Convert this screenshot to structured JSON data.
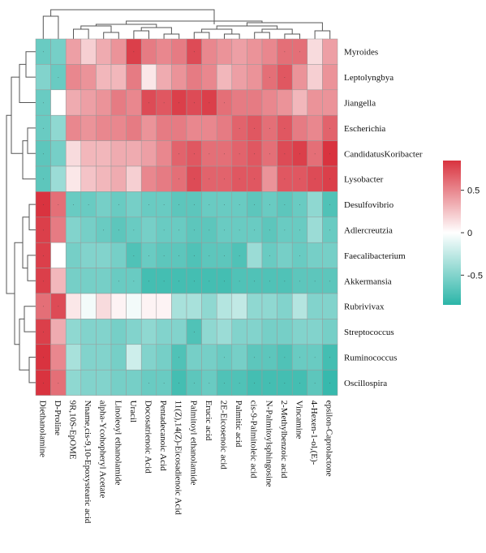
{
  "chart_data": {
    "type": "heatmap",
    "rows": [
      "Myroides",
      "Leptolyngbya",
      "Jiangella",
      "Escherichia",
      "CandidatusKoribacter",
      "Lysobacter",
      "Desulfovibrio",
      "Adlercreutzia",
      "Faecalibacterium",
      "Akkermansia",
      "Rubrivivax",
      "Streptococcus",
      "Ruminococcus",
      "Oscillospira"
    ],
    "columns": [
      "Diethanolamine",
      "D-Proline",
      "9R,10S-EpOME",
      "Nname,cis-9,10-Epoxystearic acid",
      "alpha-Ycohopheryl Acetate",
      "Linoleoyl ethanolamide",
      "Uracil",
      "Docosatrienoic Acid",
      "Pentadecanoic Acid",
      "11(Z),14(Z)-Eicosadienoic Acid",
      "Palmitoyl ethanolamide",
      "Erucic acid",
      "2E-Eicosenoic acid",
      "Palmitic acid",
      "cis-9-Palmitoleic acid",
      "N-Palmitoylsphingosine",
      "2-Methylbenzoic acid",
      "Vincamine",
      "4-Hexen-1-ol,(E)-",
      "epsilon-Caprolactone"
    ],
    "values": [
      [
        -0.6,
        -0.55,
        0.4,
        0.2,
        0.35,
        0.45,
        0.8,
        0.55,
        0.5,
        0.55,
        0.75,
        0.5,
        0.45,
        0.4,
        0.45,
        0.5,
        0.6,
        0.6,
        0.15,
        0.4
      ],
      [
        -0.5,
        -0.6,
        0.5,
        0.45,
        0.3,
        0.3,
        0.55,
        0.1,
        0.35,
        0.45,
        0.55,
        0.5,
        0.3,
        0.4,
        0.45,
        0.6,
        0.7,
        0.45,
        0.2,
        0.45
      ],
      [
        -0.6,
        0.0,
        0.35,
        0.4,
        0.45,
        0.55,
        0.5,
        0.75,
        0.7,
        0.8,
        0.75,
        0.8,
        0.6,
        0.55,
        0.55,
        0.5,
        0.45,
        0.3,
        0.45,
        0.45
      ],
      [
        -0.6,
        -0.45,
        0.5,
        0.45,
        0.5,
        0.5,
        0.55,
        0.45,
        0.55,
        0.55,
        0.5,
        0.5,
        0.55,
        0.65,
        0.7,
        0.6,
        0.7,
        0.55,
        0.5,
        0.65
      ],
      [
        -0.65,
        -0.55,
        0.15,
        0.3,
        0.3,
        0.35,
        0.35,
        0.4,
        0.5,
        0.65,
        0.7,
        0.6,
        0.6,
        0.65,
        0.7,
        0.6,
        0.75,
        0.8,
        0.6,
        0.85
      ],
      [
        -0.65,
        -0.4,
        0.1,
        0.25,
        0.3,
        0.35,
        0.2,
        0.5,
        0.55,
        0.6,
        0.75,
        0.65,
        0.65,
        0.7,
        0.7,
        0.45,
        0.7,
        0.7,
        0.75,
        0.8
      ],
      [
        0.85,
        0.6,
        -0.6,
        -0.6,
        -0.55,
        -0.6,
        -0.55,
        -0.6,
        -0.6,
        -0.65,
        -0.65,
        -0.6,
        -0.6,
        -0.6,
        -0.65,
        -0.6,
        -0.65,
        -0.6,
        -0.45,
        -0.7
      ],
      [
        0.8,
        0.55,
        -0.5,
        -0.55,
        -0.6,
        -0.65,
        -0.6,
        -0.55,
        -0.6,
        -0.6,
        -0.65,
        -0.65,
        -0.6,
        -0.6,
        -0.6,
        -0.65,
        -0.6,
        -0.6,
        -0.4,
        -0.6
      ],
      [
        0.8,
        0.0,
        -0.55,
        -0.5,
        -0.5,
        -0.55,
        -0.7,
        -0.6,
        -0.65,
        -0.65,
        -0.7,
        -0.65,
        -0.65,
        -0.7,
        -0.4,
        -0.6,
        -0.55,
        -0.6,
        -0.55,
        -0.55
      ],
      [
        0.8,
        0.3,
        -0.55,
        -0.55,
        -0.55,
        -0.6,
        -0.6,
        -0.75,
        -0.75,
        -0.75,
        -0.75,
        -0.75,
        -0.75,
        -0.7,
        -0.7,
        -0.7,
        -0.7,
        -0.65,
        -0.65,
        -0.65
      ],
      [
        0.6,
        0.75,
        0.1,
        -0.05,
        0.15,
        0.05,
        -0.05,
        0.05,
        0.05,
        -0.35,
        -0.35,
        -0.45,
        -0.3,
        -0.25,
        -0.45,
        -0.45,
        -0.5,
        -0.3,
        -0.5,
        -0.5
      ],
      [
        0.8,
        0.35,
        -0.45,
        -0.5,
        -0.5,
        -0.55,
        -0.5,
        -0.45,
        -0.5,
        -0.5,
        -0.7,
        -0.45,
        -0.4,
        -0.5,
        -0.5,
        -0.55,
        -0.55,
        -0.5,
        -0.5,
        -0.55
      ],
      [
        0.85,
        0.5,
        -0.35,
        -0.5,
        -0.5,
        -0.55,
        -0.2,
        -0.5,
        -0.55,
        -0.7,
        -0.55,
        -0.55,
        -0.6,
        -0.55,
        -0.65,
        -0.65,
        -0.7,
        -0.6,
        -0.6,
        -0.75
      ],
      [
        0.85,
        0.6,
        -0.45,
        -0.5,
        -0.5,
        -0.55,
        -0.55,
        -0.6,
        -0.6,
        -0.75,
        -0.65,
        -0.6,
        -0.7,
        -0.7,
        -0.75,
        -0.75,
        -0.75,
        -0.75,
        -0.65,
        -0.8
      ]
    ],
    "legend_ticks": [
      0.5,
      0,
      -0.5
    ],
    "legend_tick_labels": [
      "0.5",
      "0",
      "-0.5"
    ],
    "color_scale": {
      "min": -0.85,
      "max": 0.85,
      "low": "#2bb5a8",
      "mid": "#ffffff",
      "high": "#d9333f"
    },
    "legend_placement": "right"
  }
}
